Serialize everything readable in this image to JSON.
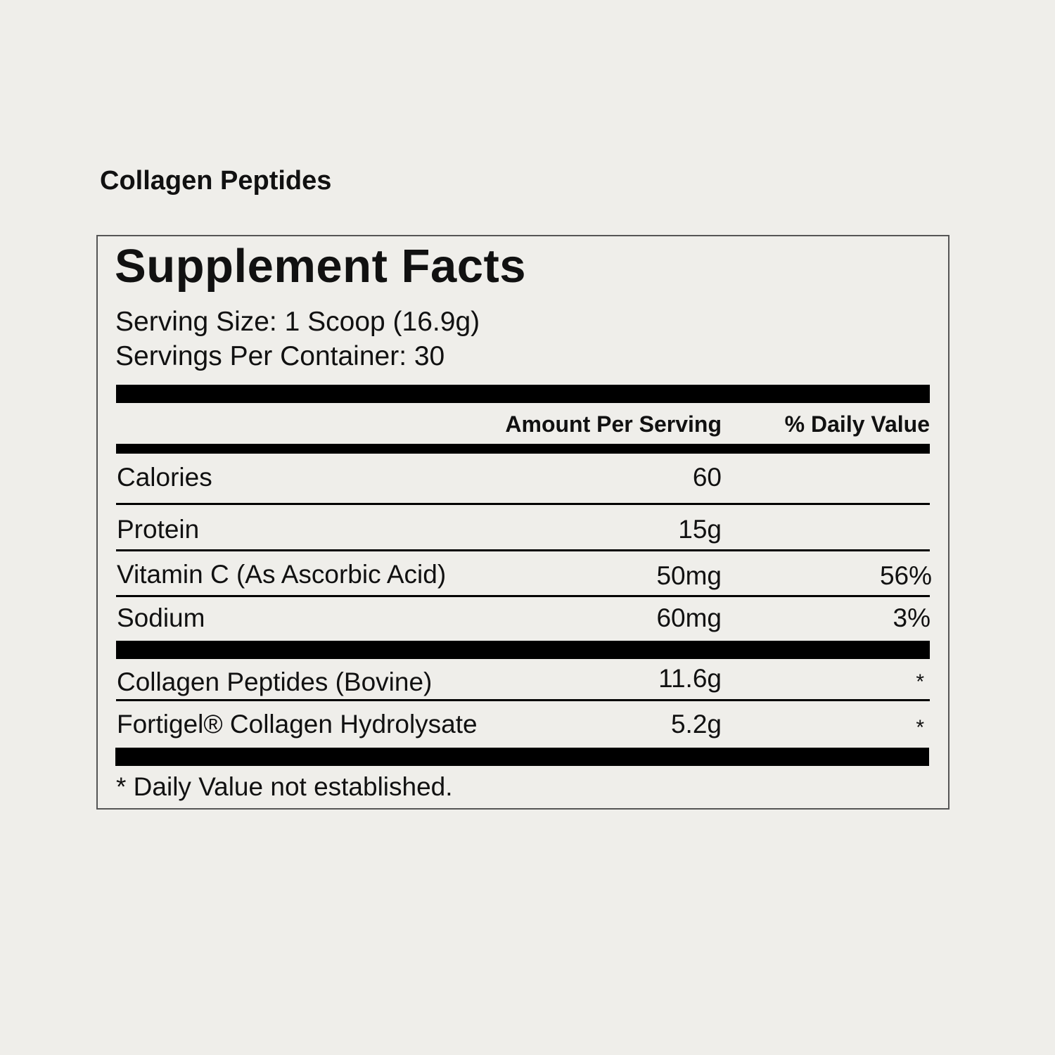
{
  "product_name": "Collagen Peptides",
  "label": {
    "title": "Supplement Facts",
    "serving_size": "Serving Size: 1 Scoop (16.9g)",
    "servings_per_container": "Servings Per Container: 30",
    "header_amount": "Amount Per Serving",
    "header_dv": "% Daily Value",
    "rows": [
      {
        "name": "Calories",
        "amount": "60",
        "dv": ""
      },
      {
        "name": "Protein",
        "amount": "15g",
        "dv": ""
      },
      {
        "name": "Vitamin C (As Ascorbic Acid)",
        "amount": "50mg",
        "dv": "56%"
      },
      {
        "name": "Sodium",
        "amount": "60mg",
        "dv": "3%"
      },
      {
        "name": "Collagen Peptides (Bovine)",
        "amount": "11.6g",
        "dv": "*"
      },
      {
        "name": "Fortigel® Collagen Hydrolysate",
        "amount": "5.2g",
        "dv": "*"
      }
    ],
    "footnote": "* Daily Value not established."
  }
}
